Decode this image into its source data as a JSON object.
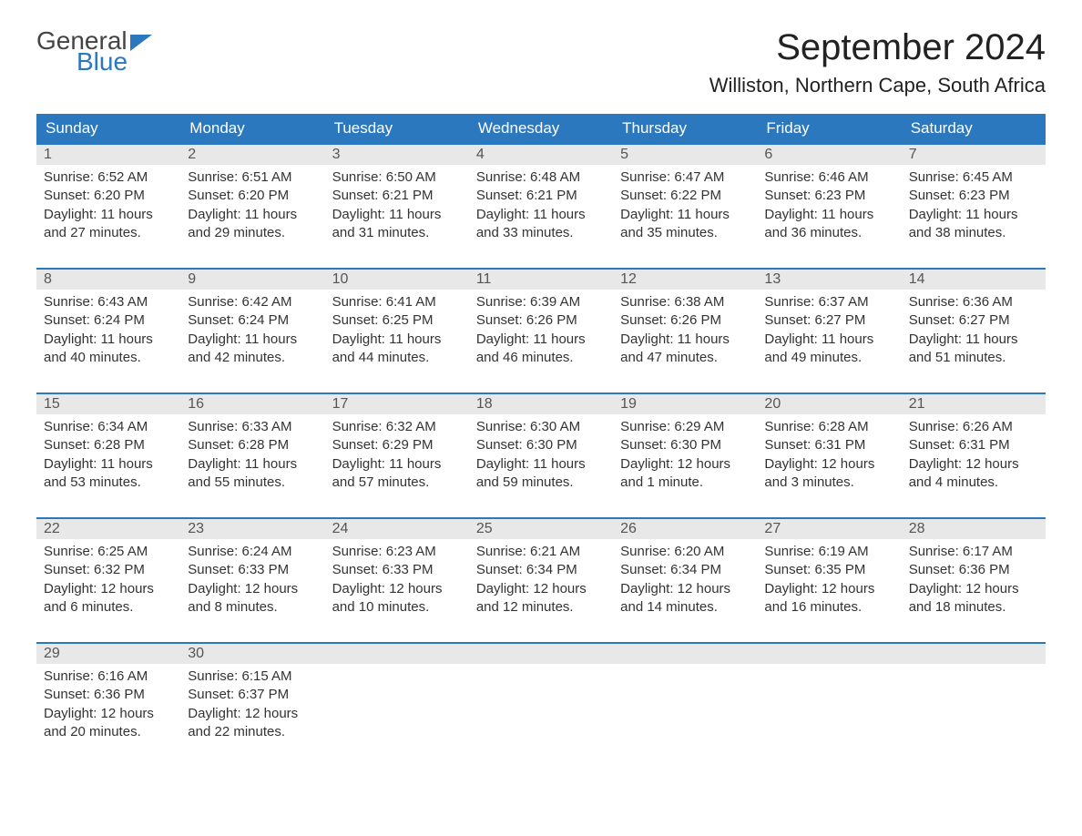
{
  "brand": {
    "line1": "General",
    "line2": "Blue"
  },
  "title": "September 2024",
  "location": "Williston, Northern Cape, South Africa",
  "colors": {
    "brand_blue": "#2b78bf",
    "header_bg": "#2b78bf",
    "day_header_bg": "#e8e8e8",
    "row_top_border": "#2b78bf",
    "background": "#ffffff",
    "text": "#333333"
  },
  "typography": {
    "title_fontsize_pt": 30,
    "location_fontsize_pt": 17,
    "weekday_fontsize_pt": 13,
    "body_fontsize_pt": 11
  },
  "calendar": {
    "type": "table",
    "weekdays": [
      "Sunday",
      "Monday",
      "Tuesday",
      "Wednesday",
      "Thursday",
      "Friday",
      "Saturday"
    ],
    "weeks": [
      [
        {
          "n": "1",
          "sunrise": "Sunrise: 6:52 AM",
          "sunset": "Sunset: 6:20 PM",
          "daylight": "Daylight: 11 hours and 27 minutes."
        },
        {
          "n": "2",
          "sunrise": "Sunrise: 6:51 AM",
          "sunset": "Sunset: 6:20 PM",
          "daylight": "Daylight: 11 hours and 29 minutes."
        },
        {
          "n": "3",
          "sunrise": "Sunrise: 6:50 AM",
          "sunset": "Sunset: 6:21 PM",
          "daylight": "Daylight: 11 hours and 31 minutes."
        },
        {
          "n": "4",
          "sunrise": "Sunrise: 6:48 AM",
          "sunset": "Sunset: 6:21 PM",
          "daylight": "Daylight: 11 hours and 33 minutes."
        },
        {
          "n": "5",
          "sunrise": "Sunrise: 6:47 AM",
          "sunset": "Sunset: 6:22 PM",
          "daylight": "Daylight: 11 hours and 35 minutes."
        },
        {
          "n": "6",
          "sunrise": "Sunrise: 6:46 AM",
          "sunset": "Sunset: 6:23 PM",
          "daylight": "Daylight: 11 hours and 36 minutes."
        },
        {
          "n": "7",
          "sunrise": "Sunrise: 6:45 AM",
          "sunset": "Sunset: 6:23 PM",
          "daylight": "Daylight: 11 hours and 38 minutes."
        }
      ],
      [
        {
          "n": "8",
          "sunrise": "Sunrise: 6:43 AM",
          "sunset": "Sunset: 6:24 PM",
          "daylight": "Daylight: 11 hours and 40 minutes."
        },
        {
          "n": "9",
          "sunrise": "Sunrise: 6:42 AM",
          "sunset": "Sunset: 6:24 PM",
          "daylight": "Daylight: 11 hours and 42 minutes."
        },
        {
          "n": "10",
          "sunrise": "Sunrise: 6:41 AM",
          "sunset": "Sunset: 6:25 PM",
          "daylight": "Daylight: 11 hours and 44 minutes."
        },
        {
          "n": "11",
          "sunrise": "Sunrise: 6:39 AM",
          "sunset": "Sunset: 6:26 PM",
          "daylight": "Daylight: 11 hours and 46 minutes."
        },
        {
          "n": "12",
          "sunrise": "Sunrise: 6:38 AM",
          "sunset": "Sunset: 6:26 PM",
          "daylight": "Daylight: 11 hours and 47 minutes."
        },
        {
          "n": "13",
          "sunrise": "Sunrise: 6:37 AM",
          "sunset": "Sunset: 6:27 PM",
          "daylight": "Daylight: 11 hours and 49 minutes."
        },
        {
          "n": "14",
          "sunrise": "Sunrise: 6:36 AM",
          "sunset": "Sunset: 6:27 PM",
          "daylight": "Daylight: 11 hours and 51 minutes."
        }
      ],
      [
        {
          "n": "15",
          "sunrise": "Sunrise: 6:34 AM",
          "sunset": "Sunset: 6:28 PM",
          "daylight": "Daylight: 11 hours and 53 minutes."
        },
        {
          "n": "16",
          "sunrise": "Sunrise: 6:33 AM",
          "sunset": "Sunset: 6:28 PM",
          "daylight": "Daylight: 11 hours and 55 minutes."
        },
        {
          "n": "17",
          "sunrise": "Sunrise: 6:32 AM",
          "sunset": "Sunset: 6:29 PM",
          "daylight": "Daylight: 11 hours and 57 minutes."
        },
        {
          "n": "18",
          "sunrise": "Sunrise: 6:30 AM",
          "sunset": "Sunset: 6:30 PM",
          "daylight": "Daylight: 11 hours and 59 minutes."
        },
        {
          "n": "19",
          "sunrise": "Sunrise: 6:29 AM",
          "sunset": "Sunset: 6:30 PM",
          "daylight": "Daylight: 12 hours and 1 minute."
        },
        {
          "n": "20",
          "sunrise": "Sunrise: 6:28 AM",
          "sunset": "Sunset: 6:31 PM",
          "daylight": "Daylight: 12 hours and 3 minutes."
        },
        {
          "n": "21",
          "sunrise": "Sunrise: 6:26 AM",
          "sunset": "Sunset: 6:31 PM",
          "daylight": "Daylight: 12 hours and 4 minutes."
        }
      ],
      [
        {
          "n": "22",
          "sunrise": "Sunrise: 6:25 AM",
          "sunset": "Sunset: 6:32 PM",
          "daylight": "Daylight: 12 hours and 6 minutes."
        },
        {
          "n": "23",
          "sunrise": "Sunrise: 6:24 AM",
          "sunset": "Sunset: 6:33 PM",
          "daylight": "Daylight: 12 hours and 8 minutes."
        },
        {
          "n": "24",
          "sunrise": "Sunrise: 6:23 AM",
          "sunset": "Sunset: 6:33 PM",
          "daylight": "Daylight: 12 hours and 10 minutes."
        },
        {
          "n": "25",
          "sunrise": "Sunrise: 6:21 AM",
          "sunset": "Sunset: 6:34 PM",
          "daylight": "Daylight: 12 hours and 12 minutes."
        },
        {
          "n": "26",
          "sunrise": "Sunrise: 6:20 AM",
          "sunset": "Sunset: 6:34 PM",
          "daylight": "Daylight: 12 hours and 14 minutes."
        },
        {
          "n": "27",
          "sunrise": "Sunrise: 6:19 AM",
          "sunset": "Sunset: 6:35 PM",
          "daylight": "Daylight: 12 hours and 16 minutes."
        },
        {
          "n": "28",
          "sunrise": "Sunrise: 6:17 AM",
          "sunset": "Sunset: 6:36 PM",
          "daylight": "Daylight: 12 hours and 18 minutes."
        }
      ],
      [
        {
          "n": "29",
          "sunrise": "Sunrise: 6:16 AM",
          "sunset": "Sunset: 6:36 PM",
          "daylight": "Daylight: 12 hours and 20 minutes."
        },
        {
          "n": "30",
          "sunrise": "Sunrise: 6:15 AM",
          "sunset": "Sunset: 6:37 PM",
          "daylight": "Daylight: 12 hours and 22 minutes."
        },
        {
          "n": "",
          "sunrise": "",
          "sunset": "",
          "daylight": ""
        },
        {
          "n": "",
          "sunrise": "",
          "sunset": "",
          "daylight": ""
        },
        {
          "n": "",
          "sunrise": "",
          "sunset": "",
          "daylight": ""
        },
        {
          "n": "",
          "sunrise": "",
          "sunset": "",
          "daylight": ""
        },
        {
          "n": "",
          "sunrise": "",
          "sunset": "",
          "daylight": ""
        }
      ]
    ]
  }
}
